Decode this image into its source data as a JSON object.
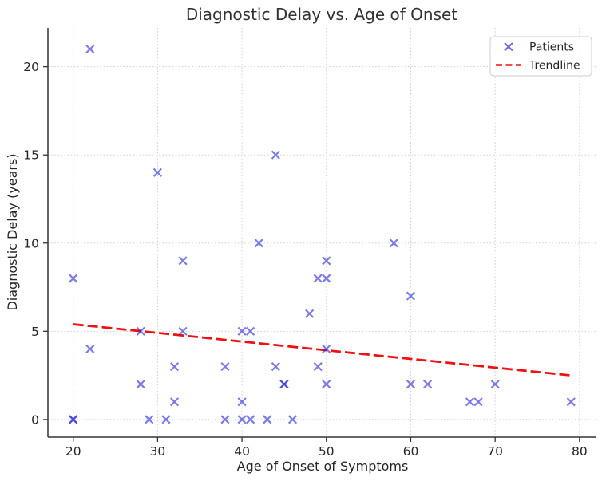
{
  "chart_data": {
    "type": "scatter",
    "title": "Diagnostic Delay vs. Age of Onset",
    "xlabel": "Age of Onset of Symptoms",
    "ylabel": "Diagnostic Delay (years)",
    "xlim": [
      17,
      82
    ],
    "ylim": [
      -1,
      22.2
    ],
    "xticks": [
      20,
      30,
      40,
      50,
      60,
      70,
      80
    ],
    "yticks": [
      0,
      5,
      10,
      15,
      20
    ],
    "grid": true,
    "legend": {
      "position": "upper right",
      "entries": [
        {
          "label": "Patients",
          "marker": "x-marker",
          "color": "#3a3ad9"
        },
        {
          "label": "Trendline",
          "marker": "dashed-line",
          "color": "#ee1111"
        }
      ]
    },
    "series": [
      {
        "name": "Patients",
        "type": "scatter",
        "marker": "x",
        "color": "#2b2bd6",
        "opacity": 0.62,
        "points": [
          [
            20,
            0
          ],
          [
            20,
            0
          ],
          [
            20,
            8
          ],
          [
            22,
            4
          ],
          [
            22,
            21
          ],
          [
            28,
            2
          ],
          [
            28,
            5
          ],
          [
            29,
            0
          ],
          [
            30,
            14
          ],
          [
            31,
            0
          ],
          [
            32,
            1
          ],
          [
            32,
            3
          ],
          [
            33,
            5
          ],
          [
            33,
            9
          ],
          [
            38,
            0
          ],
          [
            38,
            3
          ],
          [
            40,
            0
          ],
          [
            40,
            1
          ],
          [
            40,
            5
          ],
          [
            41,
            0
          ],
          [
            41,
            5
          ],
          [
            42,
            10
          ],
          [
            43,
            0
          ],
          [
            44,
            3
          ],
          [
            44,
            15
          ],
          [
            45,
            2
          ],
          [
            45,
            2
          ],
          [
            46,
            0
          ],
          [
            48,
            6
          ],
          [
            49,
            3
          ],
          [
            49,
            8
          ],
          [
            50,
            2
          ],
          [
            50,
            4
          ],
          [
            50,
            8
          ],
          [
            50,
            9
          ],
          [
            58,
            10
          ],
          [
            60,
            2
          ],
          [
            60,
            7
          ],
          [
            62,
            2
          ],
          [
            67,
            1
          ],
          [
            68,
            1
          ],
          [
            70,
            2
          ],
          [
            79,
            1
          ]
        ]
      },
      {
        "name": "Trendline",
        "type": "line",
        "style": "dashed",
        "color": "#ee1111",
        "points": [
          [
            20,
            5.4
          ],
          [
            79,
            2.5
          ]
        ]
      }
    ]
  },
  "colors": {
    "marker_blue": "#2b2bd6",
    "trend_red": "#ee1111",
    "grid_gray": "#cdcdcd",
    "text_dark": "#262626"
  }
}
